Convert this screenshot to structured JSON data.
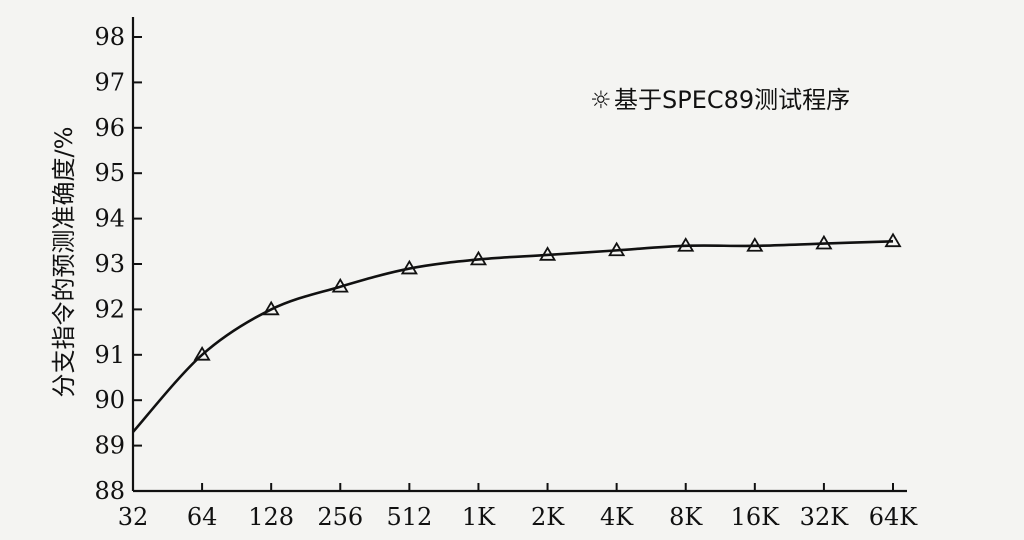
{
  "chart_data": {
    "type": "line",
    "categories": [
      "32",
      "64",
      "128",
      "256",
      "512",
      "1K",
      "2K",
      "4K",
      "8K",
      "16K",
      "32K",
      "64K"
    ],
    "series": [
      {
        "name": "基于SPEC89测试程序",
        "values": [
          89.3,
          91.0,
          92.0,
          92.5,
          92.9,
          93.1,
          93.2,
          93.3,
          93.4,
          93.4,
          93.45,
          93.5
        ],
        "marker": "triangle",
        "color": "#111111"
      }
    ],
    "xlabel": "",
    "ylabel": "分支指令的预测准确度/%",
    "ylim": [
      88,
      98
    ],
    "yticks": [
      88,
      89,
      90,
      91,
      92,
      93,
      94,
      95,
      96,
      97,
      98
    ],
    "legend_position": "top-right",
    "legend_symbol": "☼",
    "grid": false
  }
}
